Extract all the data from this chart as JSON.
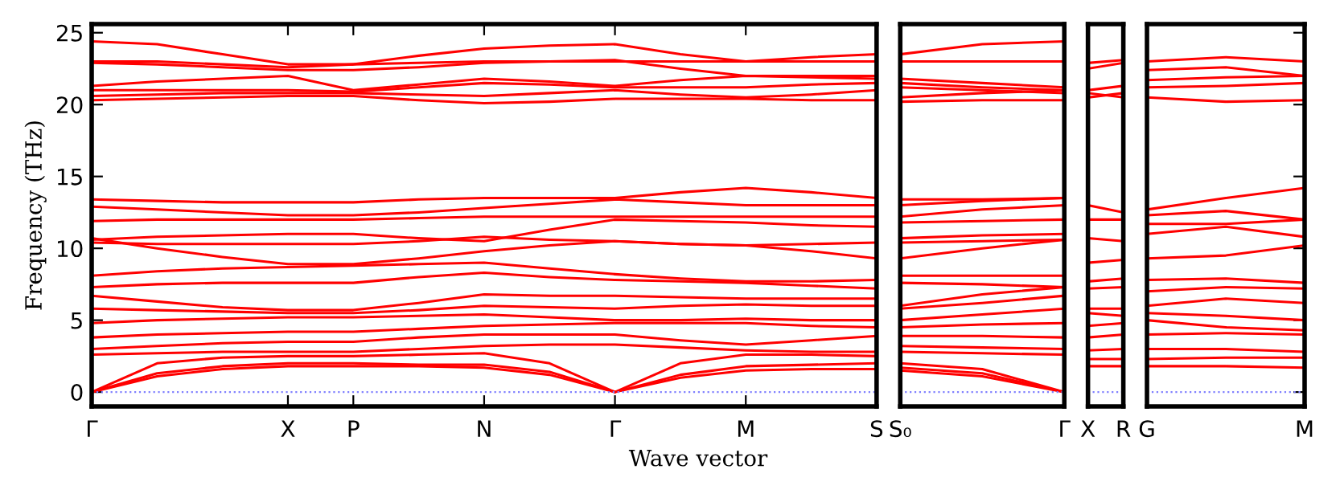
{
  "chart_data": [
    {
      "type": "line",
      "ylabel": "Frequency (THz)",
      "xlabel": "Wave vector",
      "ylim": [
        -1,
        25.6
      ],
      "yticks": [
        0,
        5,
        10,
        15,
        20,
        25
      ],
      "categories": [
        "Γ",
        null,
        null,
        "X",
        "P",
        null,
        "N",
        null,
        "Γ",
        null,
        "M",
        null,
        "S"
      ],
      "ref_lines": [
        {
          "axis": "y",
          "value": 0,
          "color": "#8080ff",
          "line_style": "dotted"
        }
      ],
      "series": [
        {
          "color": "#ff0000",
          "values": [
            24.4,
            24.2,
            23.5,
            22.8,
            22.8,
            23.4,
            23.9,
            24.1,
            24.2,
            23.5,
            23.0,
            23.3,
            23.5
          ]
        },
        {
          "color": "#ff0000",
          "values": [
            23.0,
            23.0,
            22.8,
            22.6,
            22.8,
            22.9,
            23.0,
            23.0,
            23.0,
            23.0,
            23.0,
            23.0,
            23.0
          ]
        },
        {
          "color": "#ff0000",
          "values": [
            22.9,
            22.8,
            22.6,
            22.4,
            22.4,
            22.6,
            22.9,
            23.0,
            23.1,
            22.5,
            22.0,
            22.0,
            22.0
          ]
        },
        {
          "color": "#ff0000",
          "values": [
            21.3,
            21.6,
            21.8,
            22.0,
            21.0,
            21.4,
            21.8,
            21.6,
            21.3,
            21.7,
            22.0,
            21.9,
            21.8
          ]
        },
        {
          "color": "#ff0000",
          "values": [
            21.0,
            21.0,
            21.0,
            21.0,
            20.9,
            21.2,
            21.5,
            21.4,
            21.2,
            21.2,
            21.2,
            21.4,
            21.5
          ]
        },
        {
          "color": "#ff0000",
          "values": [
            20.6,
            20.7,
            20.8,
            20.8,
            20.8,
            20.7,
            20.6,
            20.8,
            21.0,
            20.7,
            20.5,
            20.7,
            21.0
          ]
        },
        {
          "color": "#ff0000",
          "values": [
            20.3,
            20.4,
            20.5,
            20.6,
            20.6,
            20.3,
            20.1,
            20.2,
            20.4,
            20.4,
            20.4,
            20.3,
            20.3
          ]
        },
        {
          "color": "#ff0000",
          "values": [
            13.4,
            13.3,
            13.2,
            13.2,
            13.2,
            13.4,
            13.5,
            13.5,
            13.5,
            13.9,
            14.2,
            13.9,
            13.5
          ]
        },
        {
          "color": "#ff0000",
          "values": [
            12.9,
            12.7,
            12.5,
            12.3,
            12.3,
            12.5,
            12.8,
            13.1,
            13.4,
            13.2,
            13.0,
            13.0,
            13.0
          ]
        },
        {
          "color": "#ff0000",
          "values": [
            11.9,
            12.0,
            12.0,
            12.0,
            12.0,
            12.1,
            12.2,
            12.2,
            12.2,
            12.2,
            12.2,
            12.2,
            12.2
          ]
        },
        {
          "color": "#ff0000",
          "values": [
            10.6,
            10.8,
            10.9,
            11.0,
            11.0,
            10.7,
            10.5,
            11.3,
            12.0,
            11.9,
            11.8,
            11.6,
            11.5
          ]
        },
        {
          "color": "#ff0000",
          "values": [
            10.4,
            10.3,
            10.3,
            10.3,
            10.3,
            10.5,
            10.8,
            10.6,
            10.5,
            10.3,
            10.2,
            10.3,
            10.4
          ]
        },
        {
          "color": "#ff0000",
          "values": [
            10.7,
            10.0,
            9.4,
            8.9,
            8.9,
            9.3,
            9.8,
            10.2,
            10.5,
            10.3,
            10.2,
            9.8,
            9.3
          ]
        },
        {
          "color": "#ff0000",
          "values": [
            8.1,
            8.4,
            8.6,
            8.7,
            8.8,
            8.9,
            9.0,
            8.6,
            8.2,
            7.9,
            7.7,
            7.7,
            7.8
          ]
        },
        {
          "color": "#ff0000",
          "values": [
            7.3,
            7.5,
            7.6,
            7.6,
            7.6,
            8.0,
            8.3,
            8.0,
            7.8,
            7.7,
            7.6,
            7.4,
            7.2
          ]
        },
        {
          "color": "#ff0000",
          "values": [
            6.7,
            6.3,
            5.9,
            5.7,
            5.7,
            6.2,
            6.8,
            6.7,
            6.7,
            6.6,
            6.5,
            6.5,
            6.5
          ]
        },
        {
          "color": "#ff0000",
          "values": [
            5.8,
            5.7,
            5.6,
            5.5,
            5.5,
            5.7,
            6.0,
            5.9,
            5.8,
            6.0,
            6.1,
            6.0,
            6.0
          ]
        },
        {
          "color": "#ff0000",
          "values": [
            4.8,
            5.0,
            5.1,
            5.2,
            5.2,
            5.3,
            5.4,
            5.2,
            5.0,
            5.0,
            5.1,
            5.0,
            5.0
          ]
        },
        {
          "color": "#ff0000",
          "values": [
            3.8,
            4.0,
            4.1,
            4.2,
            4.2,
            4.4,
            4.6,
            4.7,
            4.8,
            4.8,
            4.8,
            4.6,
            4.5
          ]
        },
        {
          "color": "#ff0000",
          "values": [
            3.0,
            3.2,
            3.4,
            3.5,
            3.5,
            3.8,
            4.0,
            4.0,
            4.0,
            3.6,
            3.3,
            3.6,
            3.9
          ]
        },
        {
          "color": "#ff0000",
          "values": [
            2.6,
            2.7,
            2.8,
            2.8,
            2.8,
            3.0,
            3.2,
            3.3,
            3.3,
            3.1,
            2.9,
            2.8,
            2.8
          ]
        },
        {
          "color": "#ff0000",
          "values": [
            0,
            2.0,
            2.4,
            2.5,
            2.5,
            2.6,
            2.7,
            2.0,
            0,
            2.0,
            2.6,
            2.6,
            2.5
          ]
        },
        {
          "color": "#ff0000",
          "values": [
            0,
            1.3,
            1.8,
            2.0,
            2.0,
            1.9,
            1.9,
            1.4,
            0,
            1.2,
            1.8,
            1.9,
            2.0
          ]
        },
        {
          "color": "#ff0000",
          "values": [
            0,
            1.1,
            1.6,
            1.8,
            1.8,
            1.8,
            1.7,
            1.2,
            0,
            1.0,
            1.5,
            1.6,
            1.6
          ]
        }
      ]
    },
    {
      "type": "line",
      "ylim": [
        -1,
        25.6
      ],
      "yticks": [
        0,
        5,
        10,
        15,
        20,
        25
      ],
      "tick_labels": "x",
      "categories": [
        "S₀",
        null,
        "Γ"
      ],
      "ref_lines": [
        {
          "axis": "y",
          "value": 0,
          "color": "#8080ff",
          "line_style": "dotted"
        }
      ],
      "series": [
        {
          "color": "#ff0000",
          "values": [
            23.5,
            24.2,
            24.4
          ]
        },
        {
          "color": "#ff0000",
          "values": [
            23.0,
            23.0,
            23.0
          ]
        },
        {
          "color": "#ff0000",
          "values": [
            21.8,
            21.5,
            21.2
          ]
        },
        {
          "color": "#ff0000",
          "values": [
            21.5,
            21.2,
            21.0
          ]
        },
        {
          "color": "#ff0000",
          "values": [
            21.2,
            21.0,
            20.8
          ]
        },
        {
          "color": "#ff0000",
          "values": [
            20.5,
            20.8,
            21.0
          ]
        },
        {
          "color": "#ff0000",
          "values": [
            20.2,
            20.3,
            20.3
          ]
        },
        {
          "color": "#ff0000",
          "values": [
            13.4,
            13.4,
            13.5
          ]
        },
        {
          "color": "#ff0000",
          "values": [
            13.0,
            13.3,
            13.5
          ]
        },
        {
          "color": "#ff0000",
          "values": [
            12.2,
            12.7,
            13.0
          ]
        },
        {
          "color": "#ff0000",
          "values": [
            11.8,
            11.9,
            12.0
          ]
        },
        {
          "color": "#ff0000",
          "values": [
            10.7,
            10.9,
            11.0
          ]
        },
        {
          "color": "#ff0000",
          "values": [
            10.4,
            10.5,
            10.6
          ]
        },
        {
          "color": "#ff0000",
          "values": [
            9.3,
            10.0,
            10.6
          ]
        },
        {
          "color": "#ff0000",
          "values": [
            8.1,
            8.1,
            8.1
          ]
        },
        {
          "color": "#ff0000",
          "values": [
            7.6,
            7.5,
            7.3
          ]
        },
        {
          "color": "#ff0000",
          "values": [
            6.0,
            6.8,
            7.3
          ]
        },
        {
          "color": "#ff0000",
          "values": [
            5.8,
            6.2,
            6.7
          ]
        },
        {
          "color": "#ff0000",
          "values": [
            5.0,
            5.4,
            5.8
          ]
        },
        {
          "color": "#ff0000",
          "values": [
            4.5,
            4.7,
            4.8
          ]
        },
        {
          "color": "#ff0000",
          "values": [
            3.9,
            3.9,
            3.8
          ]
        },
        {
          "color": "#ff0000",
          "values": [
            3.2,
            3.1,
            3.0
          ]
        },
        {
          "color": "#ff0000",
          "values": [
            2.8,
            2.7,
            2.6
          ]
        },
        {
          "color": "#ff0000",
          "values": [
            2.0,
            1.6,
            0
          ]
        },
        {
          "color": "#ff0000",
          "values": [
            1.7,
            1.3,
            0
          ]
        },
        {
          "color": "#ff0000",
          "values": [
            1.5,
            1.1,
            0
          ]
        }
      ]
    },
    {
      "type": "line",
      "ylim": [
        -1,
        25.6
      ],
      "yticks": [
        0,
        5,
        10,
        15,
        20,
        25
      ],
      "tick_labels": "x",
      "categories": [
        "X",
        "R"
      ],
      "ref_lines": [
        {
          "axis": "y",
          "value": 0,
          "color": "#8080ff",
          "line_style": "dotted"
        }
      ],
      "series": [
        {
          "color": "#ff0000",
          "values": [
            22.9,
            23.1
          ]
        },
        {
          "color": "#ff0000",
          "values": [
            22.5,
            22.9
          ]
        },
        {
          "color": "#ff0000",
          "values": [
            21.0,
            21.3
          ]
        },
        {
          "color": "#ff0000",
          "values": [
            20.8,
            20.5
          ]
        },
        {
          "color": "#ff0000",
          "values": [
            20.5,
            20.8
          ]
        },
        {
          "color": "#ff0000",
          "values": [
            13.0,
            12.5
          ]
        },
        {
          "color": "#ff0000",
          "values": [
            12.0,
            12.0
          ]
        },
        {
          "color": "#ff0000",
          "values": [
            10.7,
            10.5
          ]
        },
        {
          "color": "#ff0000",
          "values": [
            9.0,
            9.2
          ]
        },
        {
          "color": "#ff0000",
          "values": [
            7.7,
            7.9
          ]
        },
        {
          "color": "#ff0000",
          "values": [
            7.2,
            7.3
          ]
        },
        {
          "color": "#ff0000",
          "values": [
            5.8,
            5.8
          ]
        },
        {
          "color": "#ff0000",
          "values": [
            5.5,
            5.3
          ]
        },
        {
          "color": "#ff0000",
          "values": [
            4.6,
            4.8
          ]
        },
        {
          "color": "#ff0000",
          "values": [
            3.8,
            4.0
          ]
        },
        {
          "color": "#ff0000",
          "values": [
            2.9,
            3.0
          ]
        },
        {
          "color": "#ff0000",
          "values": [
            2.3,
            2.3
          ]
        },
        {
          "color": "#ff0000",
          "values": [
            1.8,
            1.8
          ]
        }
      ]
    },
    {
      "type": "line",
      "ylim": [
        -1,
        25.6
      ],
      "yticks": [
        0,
        5,
        10,
        15,
        20,
        25
      ],
      "tick_labels": "x",
      "categories": [
        "G",
        null,
        "M"
      ],
      "ref_lines": [
        {
          "axis": "y",
          "value": 0,
          "color": "#8080ff",
          "line_style": "dotted"
        }
      ],
      "series": [
        {
          "color": "#ff0000",
          "values": [
            23.0,
            23.3,
            23.0
          ]
        },
        {
          "color": "#ff0000",
          "values": [
            22.4,
            22.6,
            22.0
          ]
        },
        {
          "color": "#ff0000",
          "values": [
            21.7,
            21.9,
            22.0
          ]
        },
        {
          "color": "#ff0000",
          "values": [
            21.2,
            21.3,
            21.5
          ]
        },
        {
          "color": "#ff0000",
          "values": [
            20.5,
            20.2,
            20.3
          ]
        },
        {
          "color": "#ff0000",
          "values": [
            12.7,
            13.5,
            14.2
          ]
        },
        {
          "color": "#ff0000",
          "values": [
            12.3,
            12.6,
            12.0
          ]
        },
        {
          "color": "#ff0000",
          "values": [
            11.7,
            11.7,
            12.0
          ]
        },
        {
          "color": "#ff0000",
          "values": [
            11.0,
            11.5,
            10.8
          ]
        },
        {
          "color": "#ff0000",
          "values": [
            9.3,
            9.5,
            10.2
          ]
        },
        {
          "color": "#ff0000",
          "values": [
            7.8,
            7.9,
            7.6
          ]
        },
        {
          "color": "#ff0000",
          "values": [
            7.0,
            7.3,
            7.2
          ]
        },
        {
          "color": "#ff0000",
          "values": [
            6.0,
            6.5,
            6.2
          ]
        },
        {
          "color": "#ff0000",
          "values": [
            5.5,
            5.3,
            5.0
          ]
        },
        {
          "color": "#ff0000",
          "values": [
            5.0,
            4.5,
            4.3
          ]
        },
        {
          "color": "#ff0000",
          "values": [
            4.0,
            4.1,
            4.0
          ]
        },
        {
          "color": "#ff0000",
          "values": [
            3.0,
            3.0,
            2.8
          ]
        },
        {
          "color": "#ff0000",
          "values": [
            2.3,
            2.4,
            2.4
          ]
        },
        {
          "color": "#ff0000",
          "values": [
            1.8,
            1.8,
            1.7
          ]
        }
      ]
    }
  ]
}
